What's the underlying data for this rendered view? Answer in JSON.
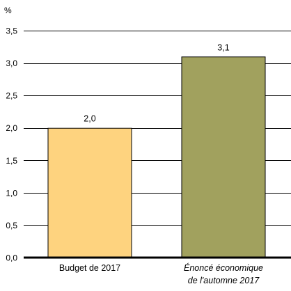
{
  "chart_data": {
    "type": "bar",
    "unit_label": "%",
    "categories": [
      [
        "Budget de 2017"
      ],
      [
        "Énoncé économique",
        "de l'automne 2017"
      ]
    ],
    "category_italic": [
      false,
      true
    ],
    "values": [
      2.0,
      3.1
    ],
    "value_labels": [
      "2,0",
      "3,1"
    ],
    "bar_colors": [
      "#FED37F",
      "#A1A15E"
    ],
    "ylim": [
      0,
      3.5
    ],
    "yticks": [
      0,
      0.5,
      1.0,
      1.5,
      2.0,
      2.5,
      3.0,
      3.5
    ],
    "ytick_labels": [
      "0,0",
      "0,5",
      "1,0",
      "1,5",
      "2,0",
      "2,5",
      "3,0",
      "3,5"
    ],
    "grid": true
  }
}
